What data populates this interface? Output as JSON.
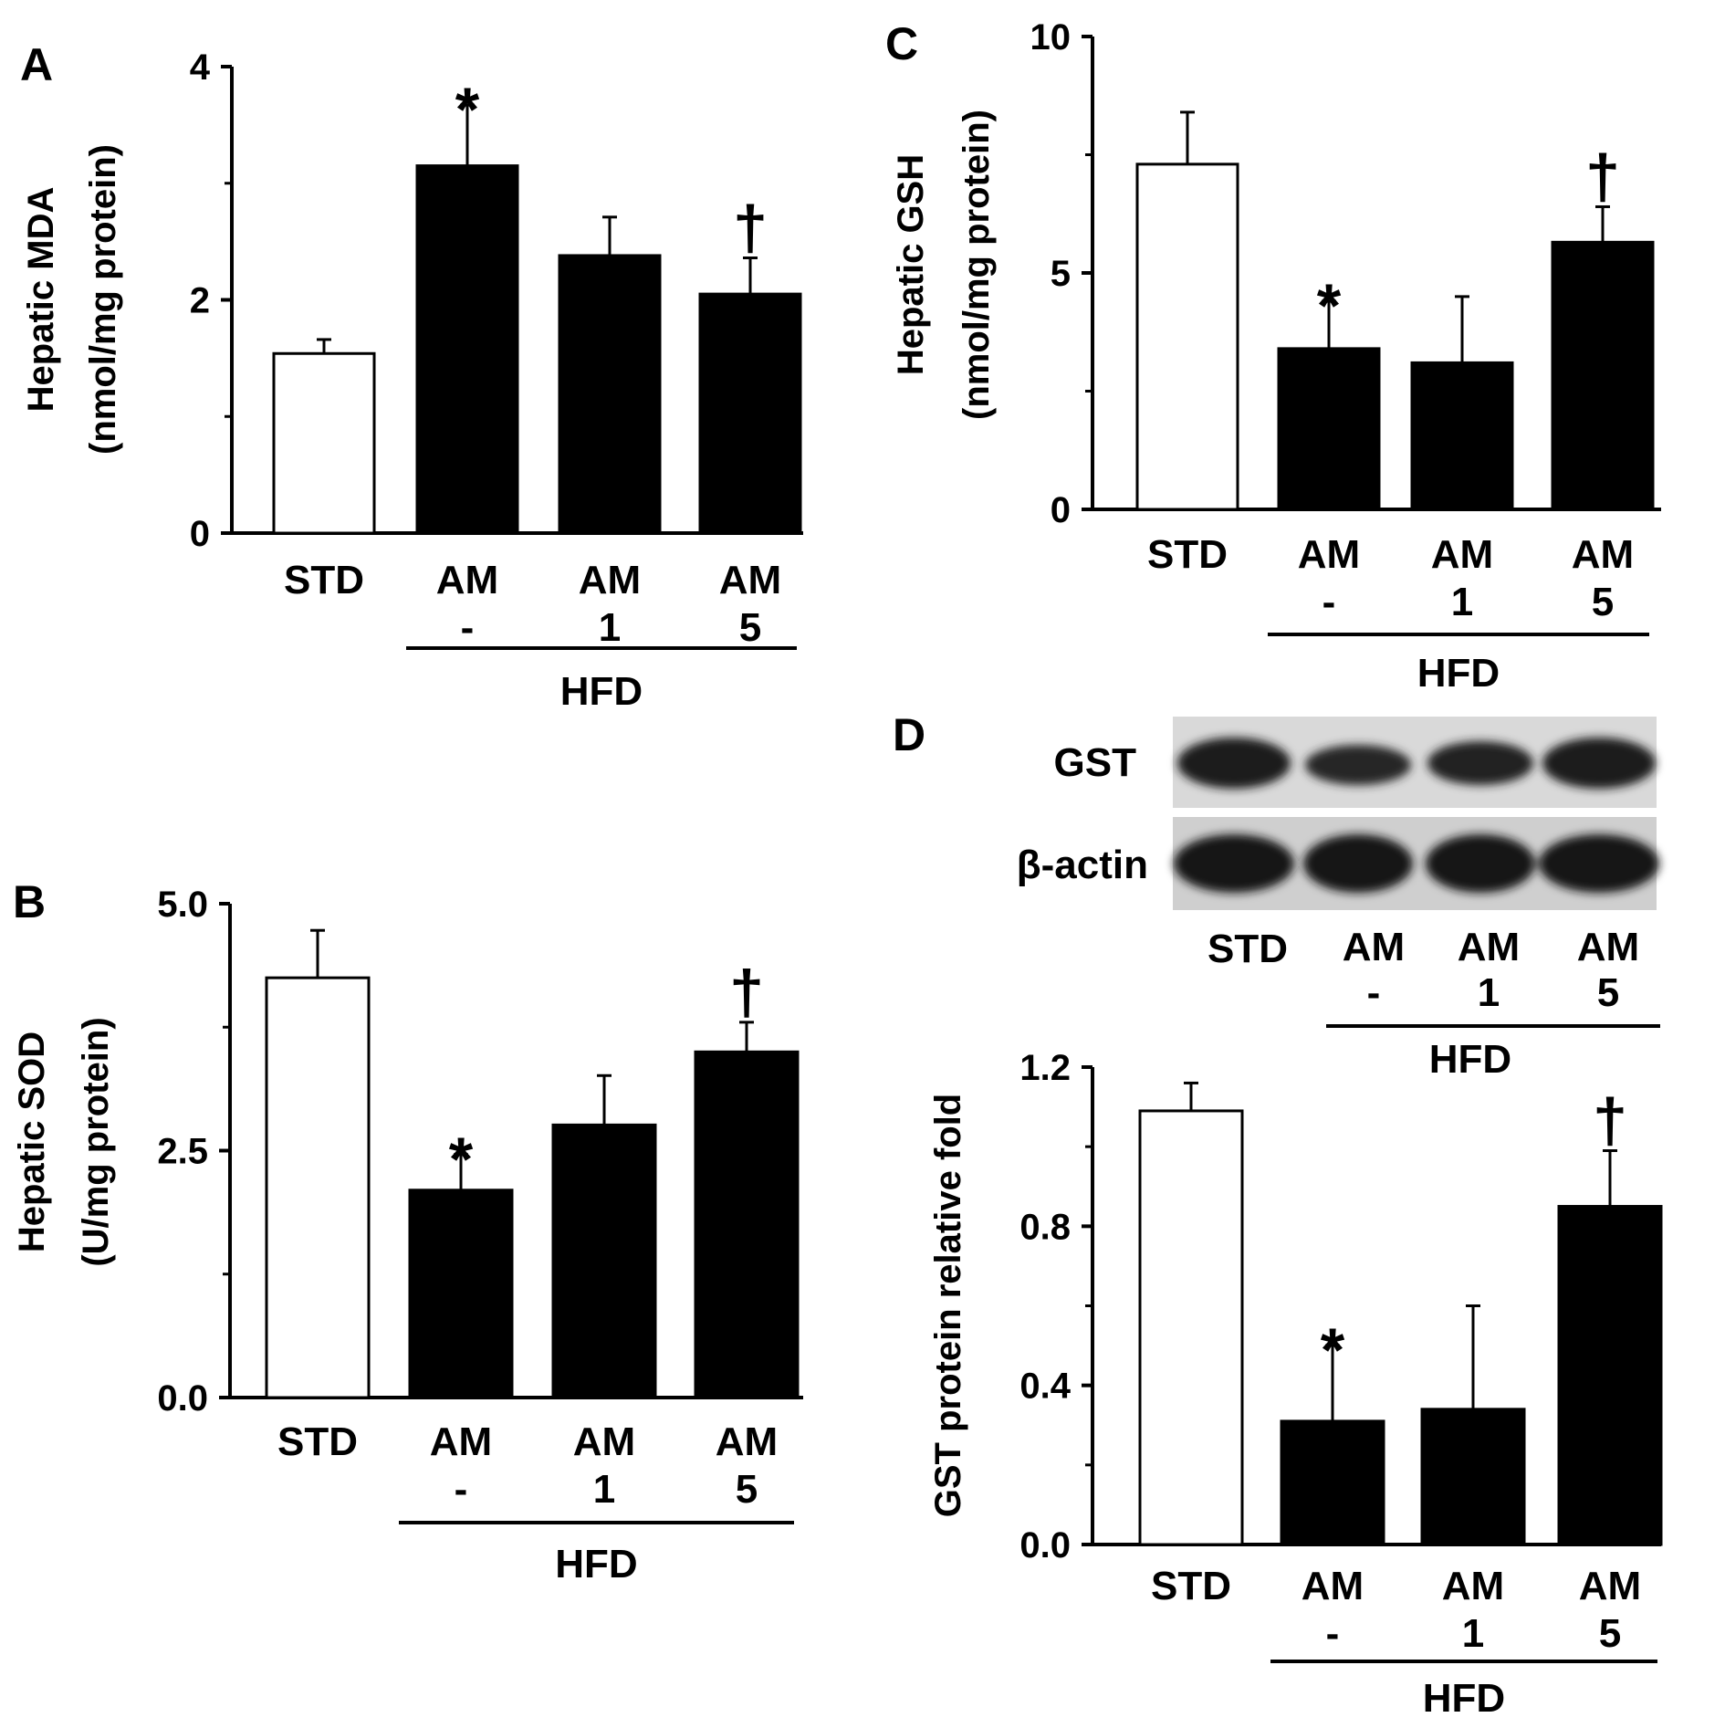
{
  "chart_data": [
    {
      "panel": "A",
      "type": "bar",
      "categories": [
        "STD",
        "AM -",
        "AM 1",
        "AM 5"
      ],
      "category_lines": [
        [
          "STD"
        ],
        [
          "AM",
          "-"
        ],
        [
          "AM",
          "1"
        ],
        [
          "AM",
          "5"
        ]
      ],
      "group_label": "HFD",
      "group_span": [
        1,
        3
      ],
      "values": [
        1.54,
        3.15,
        2.38,
        2.05
      ],
      "errors": [
        0.12,
        0.52,
        0.33,
        0.31
      ],
      "fills": [
        "#ffffff",
        "#000000",
        "#000000",
        "#000000"
      ],
      "annotations": [
        "",
        "*",
        "",
        "†"
      ],
      "ylabel_lines": [
        "Hepatic  MDA",
        "(nmol/mg  protein)"
      ],
      "yticks": [
        "0",
        "2",
        "4"
      ],
      "ylim": [
        0,
        4
      ],
      "grid": false
    },
    {
      "panel": "B",
      "type": "bar",
      "categories": [
        "STD",
        "AM -",
        "AM 1",
        "AM 5"
      ],
      "category_lines": [
        [
          "STD"
        ],
        [
          "AM",
          "-"
        ],
        [
          "AM",
          "1"
        ],
        [
          "AM",
          "5"
        ]
      ],
      "group_label": "HFD",
      "group_span": [
        1,
        3
      ],
      "values": [
        4.25,
        2.1,
        2.76,
        3.5
      ],
      "errors": [
        0.48,
        0.36,
        0.5,
        0.3
      ],
      "fills": [
        "#ffffff",
        "#000000",
        "#000000",
        "#000000"
      ],
      "annotations": [
        "",
        "*",
        "",
        "†"
      ],
      "ylabel_lines": [
        "Hepatic  SOD",
        "(U/mg  protein)"
      ],
      "yticks": [
        "0.0",
        "2.5",
        "5.0"
      ],
      "ylim": [
        0,
        5
      ],
      "grid": false
    },
    {
      "panel": "C",
      "type": "bar",
      "categories": [
        "STD",
        "AM -",
        "AM 1",
        "AM 5"
      ],
      "category_lines": [
        [
          "STD"
        ],
        [
          "AM",
          "-"
        ],
        [
          "AM",
          "1"
        ],
        [
          "AM",
          "5"
        ]
      ],
      "group_label": "HFD",
      "group_span": [
        1,
        3
      ],
      "values": [
        7.3,
        3.4,
        3.1,
        5.65
      ],
      "errors": [
        1.1,
        1.0,
        1.4,
        0.75
      ],
      "fills": [
        "#ffffff",
        "#000000",
        "#000000",
        "#000000"
      ],
      "annotations": [
        "",
        "*",
        "",
        "†"
      ],
      "ylabel_lines": [
        "Hepatic  GSH",
        "(nmol/mg  protein)"
      ],
      "yticks": [
        "0",
        "5",
        "10"
      ],
      "ylim": [
        0,
        10
      ],
      "grid": false
    },
    {
      "panel": "D",
      "type": "bar",
      "categories": [
        "STD",
        "AM -",
        "AM 1",
        "AM 5"
      ],
      "category_lines": [
        [
          "STD"
        ],
        [
          "AM",
          "-"
        ],
        [
          "AM",
          "1"
        ],
        [
          "AM",
          "5"
        ]
      ],
      "group_label": "HFD",
      "group_span": [
        1,
        3
      ],
      "values": [
        1.09,
        0.31,
        0.34,
        0.85
      ],
      "errors": [
        0.07,
        0.19,
        0.26,
        0.14
      ],
      "fills": [
        "#ffffff",
        "#000000",
        "#000000",
        "#000000"
      ],
      "annotations": [
        "",
        "*",
        "",
        "†"
      ],
      "ylabel_lines": [
        "GST protein relative fold"
      ],
      "yticks": [
        "0.0",
        "0.4",
        "0.8",
        "1.2"
      ],
      "ylim": [
        0,
        1.2
      ],
      "grid": false
    }
  ],
  "blot": {
    "rows": [
      "GST",
      "β-actin"
    ],
    "lanes": [
      "STD",
      "AM -",
      "AM 1",
      "AM 5"
    ],
    "lane_lines": [
      [
        "STD"
      ],
      [
        "AM",
        "-"
      ],
      [
        "AM",
        "1"
      ],
      [
        "AM",
        "5"
      ]
    ],
    "group_label": "HFD"
  }
}
